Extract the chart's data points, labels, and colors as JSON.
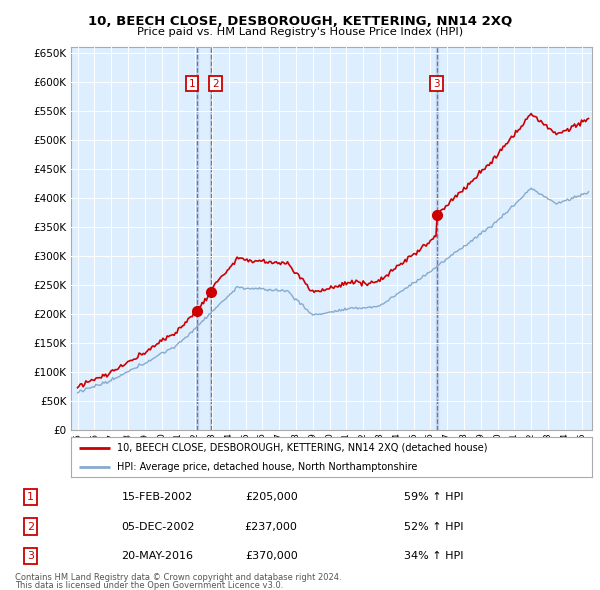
{
  "title": "10, BEECH CLOSE, DESBOROUGH, KETTERING, NN14 2XQ",
  "subtitle": "Price paid vs. HM Land Registry's House Price Index (HPI)",
  "sales": [
    {
      "date": 2002.12,
      "price": 205000,
      "label": "1"
    },
    {
      "date": 2002.92,
      "price": 237000,
      "label": "2"
    },
    {
      "date": 2016.38,
      "price": 370000,
      "label": "3"
    }
  ],
  "legend_entries": [
    "10, BEECH CLOSE, DESBOROUGH, KETTERING, NN14 2XQ (detached house)",
    "HPI: Average price, detached house, North Northamptonshire"
  ],
  "table_rows": [
    {
      "num": "1",
      "date": "15-FEB-2002",
      "price": "£205,000",
      "pct": "59% ↑ HPI"
    },
    {
      "num": "2",
      "date": "05-DEC-2002",
      "price": "£237,000",
      "pct": "52% ↑ HPI"
    },
    {
      "num": "3",
      "date": "20-MAY-2016",
      "price": "£370,000",
      "pct": "34% ↑ HPI"
    }
  ],
  "footer_line1": "Contains HM Land Registry data © Crown copyright and database right 2024.",
  "footer_line2": "This data is licensed under the Open Government Licence v3.0.",
  "red_color": "#cc0000",
  "blue_color": "#88aacc",
  "vline_color": "#cc0000",
  "grid_color": "#c8d8e8",
  "plot_bg": "#ddeeff",
  "yticks": [
    0,
    50000,
    100000,
    150000,
    200000,
    250000,
    300000,
    350000,
    400000,
    450000,
    500000,
    550000,
    600000,
    650000
  ],
  "xticks": [
    1995,
    1996,
    1997,
    1998,
    1999,
    2000,
    2001,
    2002,
    2003,
    2004,
    2005,
    2006,
    2007,
    2008,
    2009,
    2010,
    2011,
    2012,
    2013,
    2014,
    2015,
    2016,
    2017,
    2018,
    2019,
    2020,
    2021,
    2022,
    2023,
    2024,
    2025
  ],
  "ylim": [
    0,
    660000
  ],
  "xlim": [
    1994.6,
    2025.6
  ]
}
